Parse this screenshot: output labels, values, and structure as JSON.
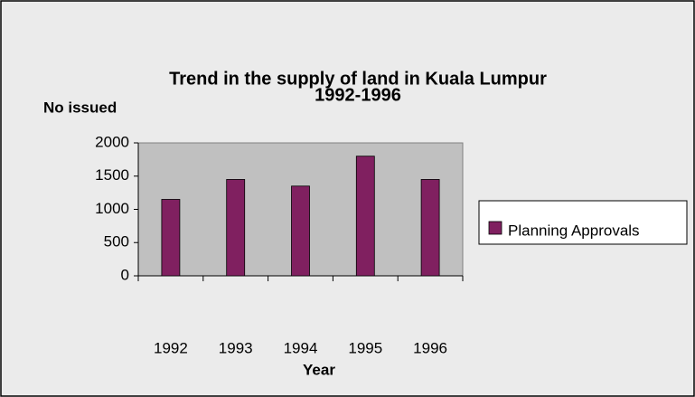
{
  "chart_data": {
    "type": "bar",
    "title": [
      "Trend in the supply of land in Kuala Lumpur",
      "1992-1996"
    ],
    "y_label": "No issued",
    "x_label": "Year",
    "categories": [
      "1992",
      "1993",
      "1994",
      "1995",
      "1996"
    ],
    "series": [
      {
        "name": "Planning Approvals",
        "color": "#802060",
        "values": [
          1150,
          1450,
          1350,
          1800,
          1450
        ]
      }
    ],
    "ylim": [
      0,
      2000
    ],
    "yticks": [
      0,
      500,
      1000,
      1500,
      2000
    ],
    "grid": false,
    "legend": "right"
  }
}
